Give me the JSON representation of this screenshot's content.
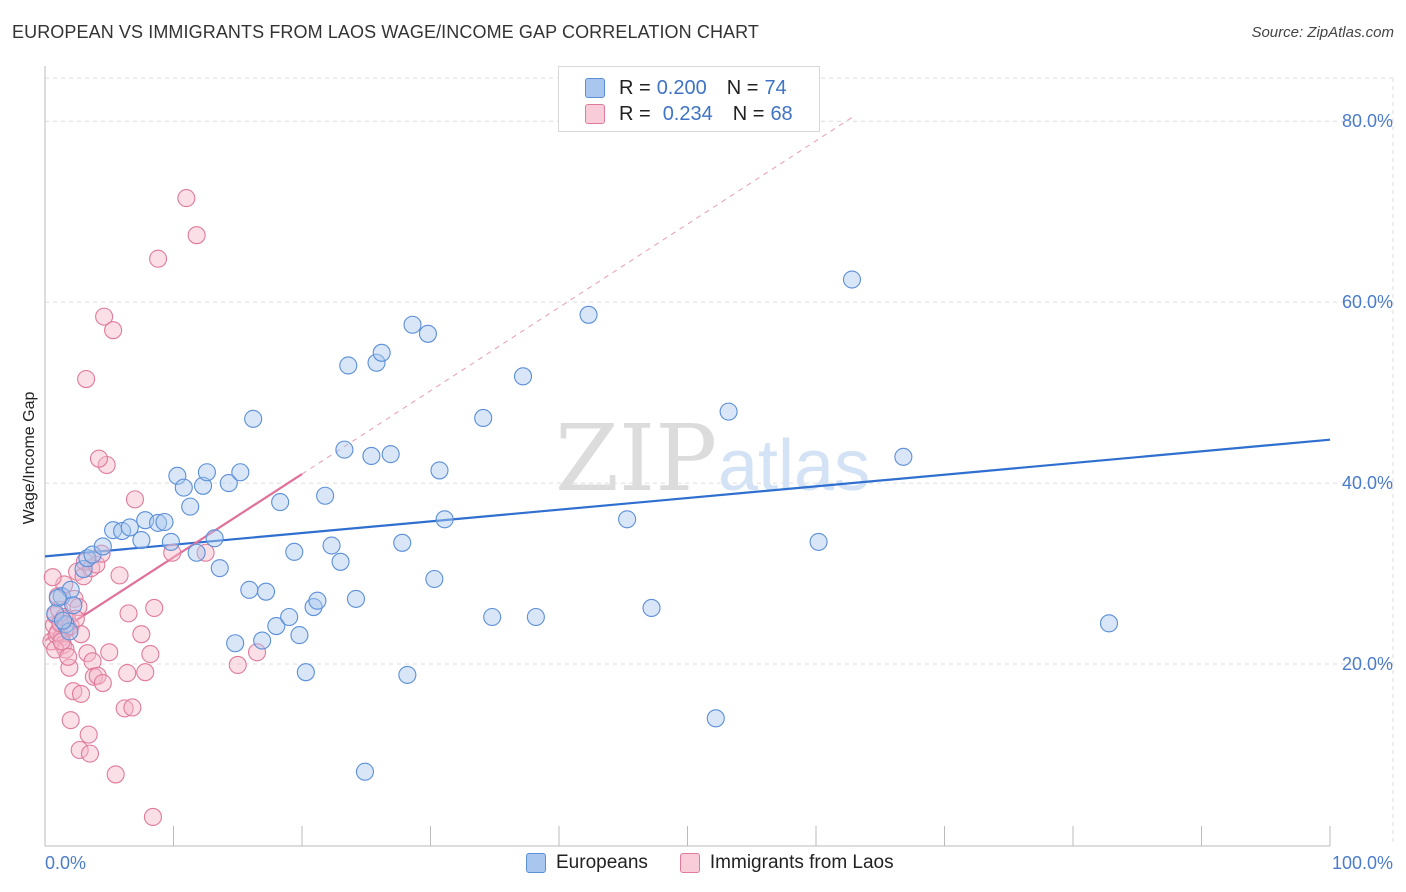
{
  "header": {
    "title": "EUROPEAN VS IMMIGRANTS FROM LAOS WAGE/INCOME GAP CORRELATION CHART",
    "source": "Source: ZipAtlas.com"
  },
  "watermark": {
    "zip": "ZIP",
    "atlas": "atlas"
  },
  "legend_top": [
    {
      "r_label": "R =",
      "r_value": "0.200",
      "n_label": "N =",
      "n_value": "74"
    },
    {
      "r_label": "R =",
      "r_value": "0.234",
      "n_label": "N =",
      "n_value": "68"
    }
  ],
  "legend_bottom": [
    "Europeans",
    "Immigrants from Laos"
  ],
  "colors": {
    "blue_fill": "#a9c7ee",
    "blue_stroke": "#5b8fd8",
    "blue_line": "#2f6fcf",
    "pink_fill": "#f4b8ca",
    "pink_stroke": "#e07a9b",
    "pink_line": "#e0709a",
    "tick_text": "#4a7cc9",
    "grid": "#dddddd"
  },
  "chart_data": {
    "type": "scatter",
    "title": "EUROPEAN VS IMMIGRANTS FROM LAOS WAGE/INCOME GAP CORRELATION CHART",
    "xlabel": "",
    "ylabel": "Wage/Income Gap",
    "xlim": [
      0,
      100
    ],
    "ylim": [
      0,
      84
    ],
    "x_tick_labels": [
      "0.0%",
      "100.0%"
    ],
    "y_ticks": [
      20,
      40,
      60,
      80
    ],
    "y_tick_labels": [
      "20.0%",
      "40.0%",
      "60.0%",
      "80.0%"
    ],
    "grid": true,
    "legend_position": "top-center",
    "series": [
      {
        "name": "Europeans",
        "R": 0.2,
        "N": 74,
        "trend": {
          "x": [
            0,
            100
          ],
          "y": [
            31.9,
            44.8
          ],
          "dashed": false
        },
        "points": [
          [
            1.3,
            27.5
          ],
          [
            2.0,
            28.2
          ],
          [
            3.0,
            30.5
          ],
          [
            3.3,
            31.7
          ],
          [
            3.7,
            32.1
          ],
          [
            4.5,
            33.0
          ],
          [
            5.3,
            34.8
          ],
          [
            6.0,
            34.7
          ],
          [
            6.6,
            35.1
          ],
          [
            7.5,
            33.7
          ],
          [
            7.8,
            35.9
          ],
          [
            8.8,
            35.6
          ],
          [
            9.3,
            35.7
          ],
          [
            9.8,
            33.5
          ],
          [
            10.3,
            40.8
          ],
          [
            10.8,
            39.5
          ],
          [
            11.3,
            37.4
          ],
          [
            11.8,
            32.3
          ],
          [
            12.3,
            39.7
          ],
          [
            12.6,
            41.2
          ],
          [
            13.2,
            33.9
          ],
          [
            13.6,
            30.6
          ],
          [
            14.3,
            40.0
          ],
          [
            14.8,
            22.3
          ],
          [
            15.2,
            41.2
          ],
          [
            15.9,
            28.2
          ],
          [
            16.2,
            47.1
          ],
          [
            16.9,
            22.6
          ],
          [
            17.2,
            28.0
          ],
          [
            18.0,
            24.2
          ],
          [
            18.3,
            37.9
          ],
          [
            19.0,
            25.2
          ],
          [
            19.4,
            32.4
          ],
          [
            19.8,
            23.2
          ],
          [
            20.3,
            19.1
          ],
          [
            20.9,
            26.3
          ],
          [
            21.2,
            27.0
          ],
          [
            21.8,
            38.6
          ],
          [
            22.3,
            33.1
          ],
          [
            23.0,
            31.3
          ],
          [
            23.3,
            43.7
          ],
          [
            23.6,
            53.0
          ],
          [
            24.2,
            27.2
          ],
          [
            24.9,
            8.1
          ],
          [
            25.4,
            43.0
          ],
          [
            25.8,
            53.3
          ],
          [
            26.2,
            54.4
          ],
          [
            26.9,
            43.2
          ],
          [
            27.8,
            33.4
          ],
          [
            28.2,
            18.8
          ],
          [
            28.6,
            57.5
          ],
          [
            29.8,
            56.5
          ],
          [
            30.3,
            29.4
          ],
          [
            30.7,
            41.4
          ],
          [
            31.1,
            36.0
          ],
          [
            34.1,
            47.2
          ],
          [
            34.8,
            25.2
          ],
          [
            37.2,
            51.8
          ],
          [
            38.2,
            25.2
          ],
          [
            42.3,
            58.6
          ],
          [
            45.3,
            36.0
          ],
          [
            47.2,
            26.2
          ],
          [
            52.2,
            14.0
          ],
          [
            53.2,
            47.9
          ],
          [
            60.2,
            33.5
          ],
          [
            62.8,
            62.5
          ],
          [
            66.8,
            42.9
          ],
          [
            82.8,
            24.5
          ],
          [
            1.0,
            27.3
          ],
          [
            2.2,
            26.5
          ],
          [
            1.6,
            24.4
          ],
          [
            0.8,
            25.6
          ],
          [
            1.9,
            23.6
          ],
          [
            1.4,
            24.8
          ]
        ]
      },
      {
        "name": "Immigrants from Laos",
        "R": 0.234,
        "N": 68,
        "trend": {
          "x": [
            0,
            20
          ],
          "y": [
            22.6,
            41.0
          ],
          "dashed": false,
          "extension": {
            "x": [
              20,
              63
            ],
            "y": [
              41.0,
              80.6
            ],
            "dashed": true
          }
        },
        "points": [
          [
            0.5,
            22.5
          ],
          [
            0.7,
            24.3
          ],
          [
            0.8,
            25.4
          ],
          [
            0.9,
            23.2
          ],
          [
            1.0,
            27.5
          ],
          [
            1.1,
            26.0
          ],
          [
            1.2,
            24.6
          ],
          [
            1.3,
            23.0
          ],
          [
            1.4,
            22.1
          ],
          [
            1.5,
            28.8
          ],
          [
            1.6,
            21.6
          ],
          [
            1.7,
            25.0
          ],
          [
            1.8,
            24.0
          ],
          [
            1.9,
            19.6
          ],
          [
            2.0,
            13.8
          ],
          [
            2.2,
            17.0
          ],
          [
            2.5,
            30.2
          ],
          [
            2.7,
            10.5
          ],
          [
            2.8,
            16.7
          ],
          [
            3.0,
            29.7
          ],
          [
            3.3,
            21.2
          ],
          [
            3.4,
            12.2
          ],
          [
            3.5,
            10.1
          ],
          [
            3.7,
            20.3
          ],
          [
            3.8,
            18.6
          ],
          [
            4.1,
            18.7
          ],
          [
            4.5,
            17.9
          ],
          [
            4.6,
            58.4
          ],
          [
            4.8,
            42.0
          ],
          [
            5.0,
            21.3
          ],
          [
            5.3,
            56.9
          ],
          [
            5.5,
            7.8
          ],
          [
            5.8,
            29.8
          ],
          [
            6.2,
            15.1
          ],
          [
            6.4,
            19.0
          ],
          [
            6.5,
            25.6
          ],
          [
            6.8,
            15.2
          ],
          [
            7.0,
            38.2
          ],
          [
            7.5,
            23.3
          ],
          [
            7.8,
            19.1
          ],
          [
            8.2,
            21.1
          ],
          [
            8.4,
            3.1
          ],
          [
            8.5,
            26.2
          ],
          [
            8.8,
            64.8
          ],
          [
            9.9,
            32.3
          ],
          [
            11.0,
            71.5
          ],
          [
            11.8,
            67.4
          ],
          [
            12.5,
            32.3
          ],
          [
            15.0,
            19.9
          ],
          [
            16.5,
            21.3
          ],
          [
            3.2,
            51.5
          ],
          [
            4.2,
            42.7
          ],
          [
            0.6,
            29.6
          ],
          [
            0.8,
            21.6
          ],
          [
            1.0,
            23.5
          ],
          [
            1.2,
            24.5
          ],
          [
            1.5,
            25.2
          ],
          [
            2.0,
            24.2
          ],
          [
            2.3,
            27.2
          ],
          [
            2.6,
            26.3
          ],
          [
            2.8,
            23.3
          ],
          [
            3.1,
            31.3
          ],
          [
            3.6,
            30.6
          ],
          [
            4.0,
            31.0
          ],
          [
            4.4,
            32.2
          ],
          [
            1.3,
            22.5
          ],
          [
            1.8,
            20.8
          ],
          [
            2.4,
            25.0
          ]
        ]
      }
    ]
  }
}
